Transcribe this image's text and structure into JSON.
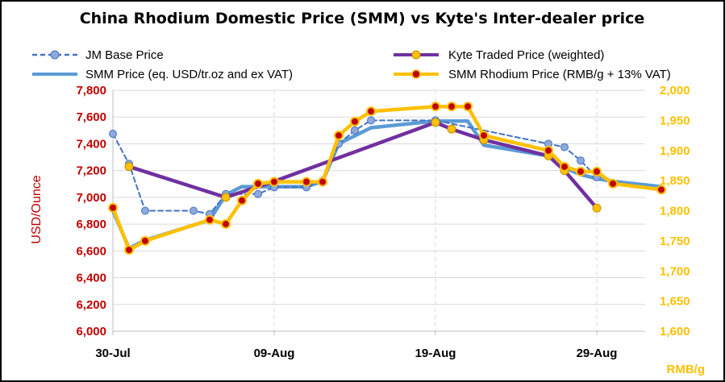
{
  "chart_data": {
    "type": "line",
    "title": "China Rhodium  Domestic Price (SMM) vs Kyte's Inter-dealer price",
    "ylabel": "USD/Ounce",
    "y2label": "RMB/g",
    "ylim": [
      6000,
      7800
    ],
    "y2lim": [
      1600,
      2000
    ],
    "x_ticks": [
      {
        "label": "30-Jul",
        "day": 0
      },
      {
        "label": "09-Aug",
        "day": 10
      },
      {
        "label": "19-Aug",
        "day": 20
      },
      {
        "label": "29-Aug",
        "day": 30
      }
    ],
    "y_ticks": [
      "6,000",
      "6,200",
      "6,400",
      "6,600",
      "6,800",
      "7,000",
      "7,200",
      "7,400",
      "7,600",
      "7,800"
    ],
    "y2_ticks": [
      "1,600",
      "1,650",
      "1,700",
      "1,750",
      "1,800",
      "1,850",
      "1,900",
      "1,950",
      "2,000"
    ],
    "grid": true,
    "legend_position": "top",
    "series": [
      {
        "name": "JM Base Price",
        "axis": "left",
        "style": "dashed-marker",
        "color": "#4472c4",
        "marker_color": "#8ea9db",
        "points": [
          [
            "30-Jul",
            7475
          ],
          [
            "31-Jul",
            7250
          ],
          [
            "01-Aug",
            6900
          ],
          [
            "04-Aug",
            6900
          ],
          [
            "05-Aug",
            6875
          ],
          [
            "06-Aug",
            7025
          ],
          [
            "08-Aug",
            7025
          ],
          [
            "09-Aug",
            7075
          ],
          [
            "11-Aug",
            7075
          ],
          [
            "12-Aug",
            7125
          ],
          [
            "13-Aug",
            7400
          ],
          [
            "14-Aug",
            7500
          ],
          [
            "15-Aug",
            7575
          ],
          [
            "19-Aug",
            7575
          ],
          [
            "26-Aug",
            7400
          ],
          [
            "27-Aug",
            7375
          ],
          [
            "28-Aug",
            7275
          ],
          [
            "29-Aug",
            7150
          ]
        ]
      },
      {
        "name": "SMM Price (eq. USD/tr.oz and ex VAT)",
        "axis": "left",
        "style": "line",
        "color": "#5b9bd5",
        "points": [
          [
            "30-Jul",
            6900
          ],
          [
            "31-Jul",
            6620
          ],
          [
            "01-Aug",
            6680
          ],
          [
            "05-Aug",
            6830
          ],
          [
            "06-Aug",
            7020
          ],
          [
            "07-Aug",
            7080
          ],
          [
            "08-Aug",
            7080
          ],
          [
            "09-Aug",
            7080
          ],
          [
            "11-Aug",
            7080
          ],
          [
            "12-Aug",
            7120
          ],
          [
            "13-Aug",
            7400
          ],
          [
            "14-Aug",
            7460
          ],
          [
            "15-Aug",
            7520
          ],
          [
            "19-Aug",
            7570
          ],
          [
            "21-Aug",
            7570
          ],
          [
            "22-Aug",
            7390
          ],
          [
            "26-Aug",
            7310
          ],
          [
            "27-Aug",
            7220
          ],
          [
            "28-Aug",
            7170
          ],
          [
            "29-Aug",
            7140
          ],
          [
            "30-Aug",
            7120
          ],
          [
            "02-Sep",
            7080
          ]
        ]
      },
      {
        "name": "Kyte Traded Price (weighted)",
        "axis": "left",
        "style": "line-marker",
        "color": "#7030a0",
        "marker_color": "#ffc000",
        "points": [
          [
            "31-Jul",
            7230
          ],
          [
            "06-Aug",
            7000
          ],
          [
            "09-Aug",
            7120
          ],
          [
            "19-Aug",
            7560
          ],
          [
            "20-Aug",
            7510
          ],
          [
            "22-Aug",
            7430
          ],
          [
            "26-Aug",
            7310
          ],
          [
            "27-Aug",
            7200
          ],
          [
            "29-Aug",
            6920
          ]
        ]
      },
      {
        "name": "SMM Rhodium Price (RMB/g + 13% VAT)",
        "axis": "right",
        "style": "line-marker",
        "color": "#ffc000",
        "marker_color": "#c00000",
        "points": [
          [
            "30-Jul",
            1805
          ],
          [
            "31-Jul",
            1735
          ],
          [
            "01-Aug",
            1750
          ],
          [
            "05-Aug",
            1785
          ],
          [
            "06-Aug",
            1778
          ],
          [
            "07-Aug",
            1817
          ],
          [
            "08-Aug",
            1845
          ],
          [
            "09-Aug",
            1848
          ],
          [
            "11-Aug",
            1848
          ],
          [
            "12-Aug",
            1848
          ],
          [
            "13-Aug",
            1925
          ],
          [
            "14-Aug",
            1948
          ],
          [
            "15-Aug",
            1965
          ],
          [
            "19-Aug",
            1973
          ],
          [
            "20-Aug",
            1973
          ],
          [
            "21-Aug",
            1973
          ],
          [
            "22-Aug",
            1925
          ],
          [
            "26-Aug",
            1900
          ],
          [
            "27-Aug",
            1873
          ],
          [
            "28-Aug",
            1865
          ],
          [
            "29-Aug",
            1865
          ],
          [
            "30-Aug",
            1845
          ],
          [
            "02-Sep",
            1835
          ]
        ]
      }
    ]
  }
}
